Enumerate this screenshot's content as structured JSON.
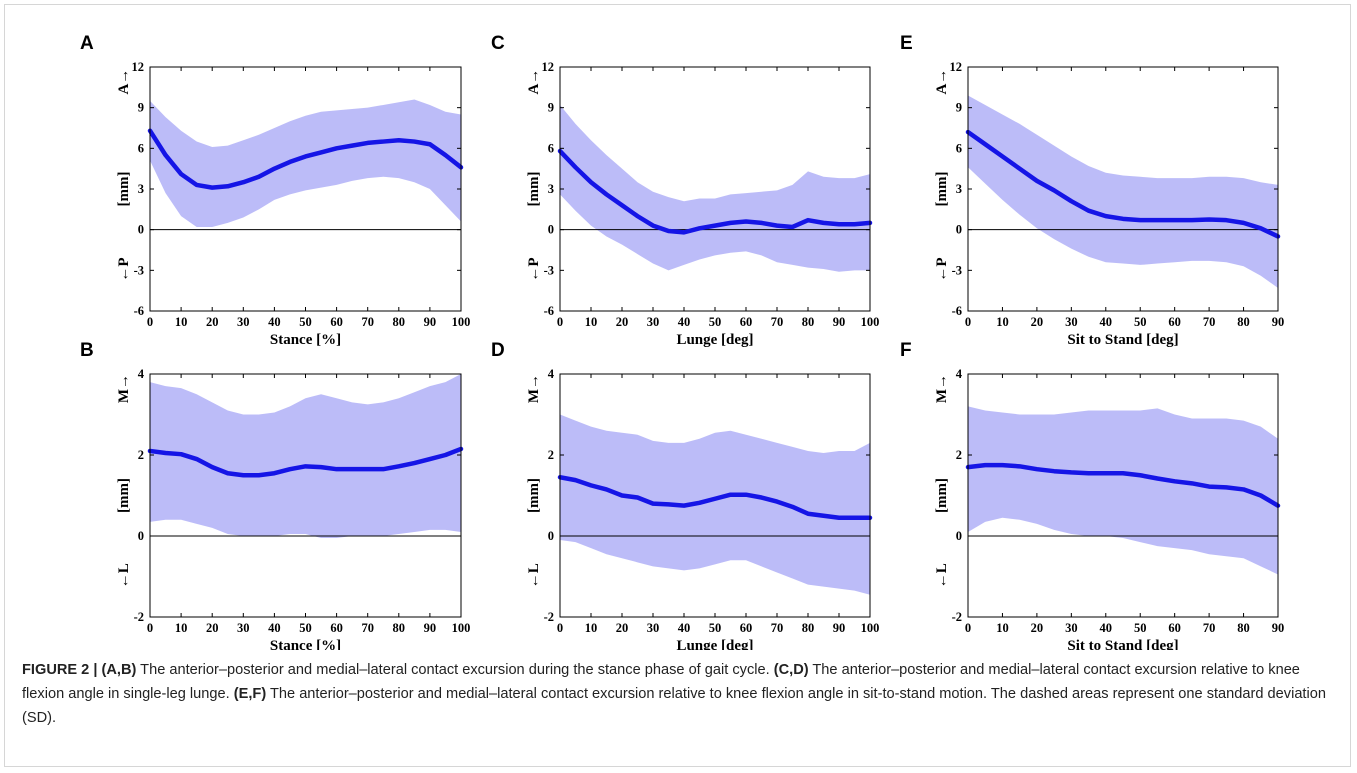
{
  "chart_data": [
    {
      "panel_letter": "A",
      "type": "line",
      "xlabel": "Stance [%]",
      "ylabel": "[mm]",
      "y_pos_dir": "A→",
      "y_neg_dir": "←P",
      "xlim": [
        0,
        100
      ],
      "ylim": [
        -6,
        12
      ],
      "xticks": [
        0,
        10,
        20,
        30,
        40,
        50,
        60,
        70,
        80,
        90,
        100
      ],
      "yticks": [
        -6,
        -3,
        0,
        3,
        6,
        9,
        12
      ],
      "x": [
        0,
        5,
        10,
        15,
        20,
        25,
        30,
        35,
        40,
        45,
        50,
        55,
        60,
        65,
        70,
        75,
        80,
        85,
        90,
        95,
        100
      ],
      "mean": [
        7.3,
        5.5,
        4.1,
        3.3,
        3.1,
        3.2,
        3.5,
        3.9,
        4.5,
        5.0,
        5.4,
        5.7,
        6.0,
        6.2,
        6.4,
        6.5,
        6.6,
        6.5,
        6.3,
        5.5,
        4.6
      ],
      "upper": [
        9.5,
        8.3,
        7.3,
        6.5,
        6.1,
        6.2,
        6.6,
        7.0,
        7.5,
        8.0,
        8.4,
        8.7,
        8.8,
        8.9,
        9.0,
        9.2,
        9.4,
        9.6,
        9.2,
        8.7,
        8.5
      ],
      "lower": [
        5.1,
        2.7,
        1.0,
        0.2,
        0.2,
        0.5,
        0.9,
        1.5,
        2.2,
        2.6,
        2.9,
        3.1,
        3.3,
        3.6,
        3.8,
        3.9,
        3.8,
        3.5,
        3.0,
        1.8,
        0.6
      ],
      "series": [
        {
          "name": "mean",
          "color": "#1515e6"
        },
        {
          "name": "SD",
          "color": "#b8b8f8"
        }
      ]
    },
    {
      "panel_letter": "B",
      "type": "line",
      "xlabel": "Stance [%]",
      "ylabel": "[mm]",
      "y_pos_dir": "M→",
      "y_neg_dir": "←L",
      "xlim": [
        0,
        100
      ],
      "ylim": [
        -2,
        4
      ],
      "xticks": [
        0,
        10,
        20,
        30,
        40,
        50,
        60,
        70,
        80,
        90,
        100
      ],
      "yticks": [
        -2,
        0,
        2,
        4
      ],
      "x": [
        0,
        5,
        10,
        15,
        20,
        25,
        30,
        35,
        40,
        45,
        50,
        55,
        60,
        65,
        70,
        75,
        80,
        85,
        90,
        95,
        100
      ],
      "mean": [
        2.1,
        2.05,
        2.02,
        1.9,
        1.7,
        1.55,
        1.5,
        1.5,
        1.55,
        1.65,
        1.72,
        1.7,
        1.65,
        1.65,
        1.65,
        1.65,
        1.72,
        1.8,
        1.9,
        2.0,
        2.15
      ],
      "upper": [
        3.8,
        3.7,
        3.65,
        3.5,
        3.3,
        3.1,
        3.0,
        3.0,
        3.05,
        3.2,
        3.4,
        3.5,
        3.4,
        3.3,
        3.25,
        3.3,
        3.4,
        3.55,
        3.7,
        3.8,
        4.0
      ],
      "lower": [
        0.35,
        0.4,
        0.4,
        0.3,
        0.2,
        0.05,
        0.0,
        0.0,
        0.0,
        0.05,
        0.05,
        -0.05,
        -0.05,
        0.0,
        0.0,
        0.0,
        0.05,
        0.1,
        0.15,
        0.15,
        0.1
      ],
      "series": [
        {
          "name": "mean",
          "color": "#1515e6"
        },
        {
          "name": "SD",
          "color": "#b8b8f8"
        }
      ]
    },
    {
      "panel_letter": "C",
      "type": "line",
      "xlabel": "Lunge [deg]",
      "ylabel": "[mm]",
      "y_pos_dir": "A→",
      "y_neg_dir": "←P",
      "xlim": [
        0,
        100
      ],
      "ylim": [
        -6,
        12
      ],
      "xticks": [
        0,
        10,
        20,
        30,
        40,
        50,
        60,
        70,
        80,
        90,
        100
      ],
      "yticks": [
        -6,
        -3,
        0,
        3,
        6,
        9,
        12
      ],
      "x": [
        0,
        5,
        10,
        15,
        20,
        25,
        30,
        35,
        40,
        45,
        50,
        55,
        60,
        65,
        70,
        75,
        80,
        85,
        90,
        95,
        100
      ],
      "mean": [
        5.8,
        4.6,
        3.5,
        2.6,
        1.8,
        1.0,
        0.3,
        -0.1,
        -0.2,
        0.1,
        0.3,
        0.5,
        0.6,
        0.5,
        0.3,
        0.2,
        0.7,
        0.5,
        0.4,
        0.4,
        0.5
      ],
      "upper": [
        9.2,
        7.8,
        6.6,
        5.5,
        4.5,
        3.5,
        2.8,
        2.4,
        2.1,
        2.3,
        2.3,
        2.6,
        2.7,
        2.8,
        2.9,
        3.3,
        4.3,
        3.9,
        3.8,
        3.8,
        4.1
      ],
      "lower": [
        2.6,
        1.4,
        0.3,
        -0.5,
        -1.1,
        -1.8,
        -2.5,
        -3.0,
        -2.6,
        -2.2,
        -1.9,
        -1.7,
        -1.6,
        -1.9,
        -2.4,
        -2.6,
        -2.8,
        -2.9,
        -3.1,
        -3.0,
        -3.0
      ],
      "series": [
        {
          "name": "mean",
          "color": "#1515e6"
        },
        {
          "name": "SD",
          "color": "#b8b8f8"
        }
      ]
    },
    {
      "panel_letter": "D",
      "type": "line",
      "xlabel": "Lunge [deg]",
      "ylabel": "[mm]",
      "y_pos_dir": "M→",
      "y_neg_dir": "←L",
      "xlim": [
        0,
        100
      ],
      "ylim": [
        -2,
        4
      ],
      "xticks": [
        0,
        10,
        20,
        30,
        40,
        50,
        60,
        70,
        80,
        90,
        100
      ],
      "yticks": [
        -2,
        0,
        2,
        4
      ],
      "x": [
        0,
        5,
        10,
        15,
        20,
        25,
        30,
        35,
        40,
        45,
        50,
        55,
        60,
        65,
        70,
        75,
        80,
        85,
        90,
        95,
        100
      ],
      "mean": [
        1.45,
        1.38,
        1.25,
        1.15,
        1.0,
        0.95,
        0.8,
        0.78,
        0.75,
        0.82,
        0.92,
        1.02,
        1.02,
        0.95,
        0.85,
        0.72,
        0.55,
        0.5,
        0.45,
        0.45,
        0.45
      ],
      "upper": [
        3.0,
        2.85,
        2.7,
        2.6,
        2.55,
        2.5,
        2.35,
        2.3,
        2.3,
        2.4,
        2.55,
        2.6,
        2.5,
        2.4,
        2.3,
        2.2,
        2.1,
        2.05,
        2.1,
        2.1,
        2.3
      ],
      "lower": [
        -0.1,
        -0.15,
        -0.3,
        -0.45,
        -0.55,
        -0.65,
        -0.75,
        -0.8,
        -0.85,
        -0.8,
        -0.7,
        -0.6,
        -0.6,
        -0.75,
        -0.9,
        -1.05,
        -1.2,
        -1.25,
        -1.3,
        -1.35,
        -1.45
      ],
      "series": [
        {
          "name": "mean",
          "color": "#1515e6"
        },
        {
          "name": "SD",
          "color": "#b8b8f8"
        }
      ]
    },
    {
      "panel_letter": "E",
      "type": "line",
      "xlabel": "Sit to Stand [deg]",
      "ylabel": "[mm]",
      "y_pos_dir": "A→",
      "y_neg_dir": "←P",
      "xlim": [
        0,
        90
      ],
      "ylim": [
        -6,
        12
      ],
      "xticks": [
        0,
        10,
        20,
        30,
        40,
        50,
        60,
        70,
        80,
        90
      ],
      "yticks": [
        -6,
        -3,
        0,
        3,
        6,
        9,
        12
      ],
      "x": [
        0,
        5,
        10,
        15,
        20,
        25,
        30,
        35,
        40,
        45,
        50,
        55,
        60,
        65,
        70,
        75,
        80,
        85,
        90
      ],
      "mean": [
        7.2,
        6.3,
        5.4,
        4.5,
        3.6,
        2.9,
        2.1,
        1.4,
        1.0,
        0.8,
        0.7,
        0.7,
        0.7,
        0.7,
        0.75,
        0.7,
        0.5,
        0.1,
        -0.5
      ],
      "upper": [
        9.9,
        9.2,
        8.5,
        7.8,
        7.0,
        6.2,
        5.4,
        4.7,
        4.2,
        4.0,
        3.9,
        3.8,
        3.8,
        3.8,
        3.9,
        3.9,
        3.8,
        3.5,
        3.3
      ],
      "lower": [
        4.6,
        3.4,
        2.2,
        1.1,
        0.1,
        -0.7,
        -1.4,
        -2.0,
        -2.4,
        -2.5,
        -2.6,
        -2.5,
        -2.4,
        -2.3,
        -2.3,
        -2.4,
        -2.7,
        -3.4,
        -4.3
      ],
      "series": [
        {
          "name": "mean",
          "color": "#1515e6"
        },
        {
          "name": "SD",
          "color": "#b8b8f8"
        }
      ]
    },
    {
      "panel_letter": "F",
      "type": "line",
      "xlabel": "Sit to Stand [deg]",
      "ylabel": "[mm]",
      "y_pos_dir": "M→",
      "y_neg_dir": "←L",
      "xlim": [
        0,
        90
      ],
      "ylim": [
        -2,
        4
      ],
      "xticks": [
        0,
        10,
        20,
        30,
        40,
        50,
        60,
        70,
        80,
        90
      ],
      "yticks": [
        -2,
        0,
        2,
        4
      ],
      "x": [
        0,
        5,
        10,
        15,
        20,
        25,
        30,
        35,
        40,
        45,
        50,
        55,
        60,
        65,
        70,
        75,
        80,
        85,
        90
      ],
      "mean": [
        1.7,
        1.75,
        1.75,
        1.72,
        1.65,
        1.6,
        1.57,
        1.55,
        1.55,
        1.55,
        1.5,
        1.42,
        1.35,
        1.3,
        1.22,
        1.2,
        1.15,
        1.0,
        0.75
      ],
      "upper": [
        3.2,
        3.1,
        3.05,
        3.0,
        3.0,
        3.0,
        3.05,
        3.1,
        3.1,
        3.1,
        3.1,
        3.15,
        3.0,
        2.9,
        2.9,
        2.9,
        2.85,
        2.7,
        2.4
      ],
      "lower": [
        0.1,
        0.35,
        0.45,
        0.4,
        0.3,
        0.15,
        0.05,
        0.0,
        0.0,
        -0.05,
        -0.15,
        -0.25,
        -0.3,
        -0.35,
        -0.45,
        -0.5,
        -0.55,
        -0.75,
        -0.95
      ],
      "series": [
        {
          "name": "mean",
          "color": "#1515e6"
        },
        {
          "name": "SD",
          "color": "#b8b8f8"
        }
      ]
    }
  ],
  "caption": {
    "figure_label": "FIGURE 2 |",
    "part1_bold": "(A,B)",
    "part1_text": " The anterior–posterior and medial–lateral contact excursion during the stance phase of gait cycle. ",
    "part2_bold": "(C,D)",
    "part2_text": " The anterior–posterior and medial–lateral contact excursion relative to knee flexion angle in single-leg lunge. ",
    "part3_bold": "(E,F)",
    "part3_text": " The anterior–posterior and medial–lateral contact excursion relative to knee flexion angle in sit-to-stand motion. The dashed areas represent one standard deviation (SD)."
  }
}
